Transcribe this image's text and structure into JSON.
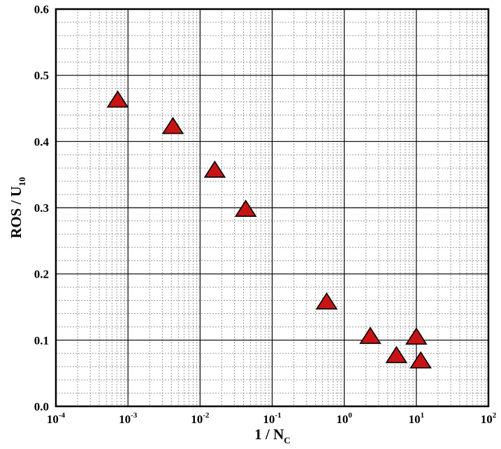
{
  "chart_data": {
    "type": "scatter",
    "title": "",
    "xlabel": {
      "base": "1 / N",
      "subscript": "C"
    },
    "ylabel": {
      "base": "ROS / U",
      "subscript": "10"
    },
    "xscale": "log",
    "xlim": [
      0.0001,
      100
    ],
    "ylim": [
      0.0,
      0.6
    ],
    "x_ticks": [
      {
        "base": "10",
        "exp": "-4",
        "value": 0.0001
      },
      {
        "base": "10",
        "exp": "-3",
        "value": 0.001
      },
      {
        "base": "10",
        "exp": "-2",
        "value": 0.01
      },
      {
        "base": "10",
        "exp": "-1",
        "value": 0.1
      },
      {
        "base": "10",
        "exp": "0",
        "value": 1
      },
      {
        "base": "10",
        "exp": "1",
        "value": 10
      },
      {
        "base": "10",
        "exp": "2",
        "value": 100
      }
    ],
    "y_ticks": [
      {
        "label": "0.0",
        "value": 0.0
      },
      {
        "label": "0.1",
        "value": 0.1
      },
      {
        "label": "0.2",
        "value": 0.2
      },
      {
        "label": "0.3",
        "value": 0.3
      },
      {
        "label": "0.4",
        "value": 0.4
      },
      {
        "label": "0.5",
        "value": 0.5
      },
      {
        "label": "0.6",
        "value": 0.6
      }
    ],
    "grid": true,
    "legend": "none",
    "marker": "triangle",
    "marker_color": "#c81414",
    "series": [
      {
        "points": [
          {
            "x": 0.00072,
            "y": 0.462
          },
          {
            "x": 0.0042,
            "y": 0.422
          },
          {
            "x": 0.016,
            "y": 0.356
          },
          {
            "x": 0.043,
            "y": 0.297
          },
          {
            "x": 0.57,
            "y": 0.157
          },
          {
            "x": 2.3,
            "y": 0.105
          },
          {
            "x": 5.3,
            "y": 0.076
          },
          {
            "x": 10,
            "y": 0.104
          },
          {
            "x": 11.5,
            "y": 0.068
          }
        ]
      }
    ]
  }
}
